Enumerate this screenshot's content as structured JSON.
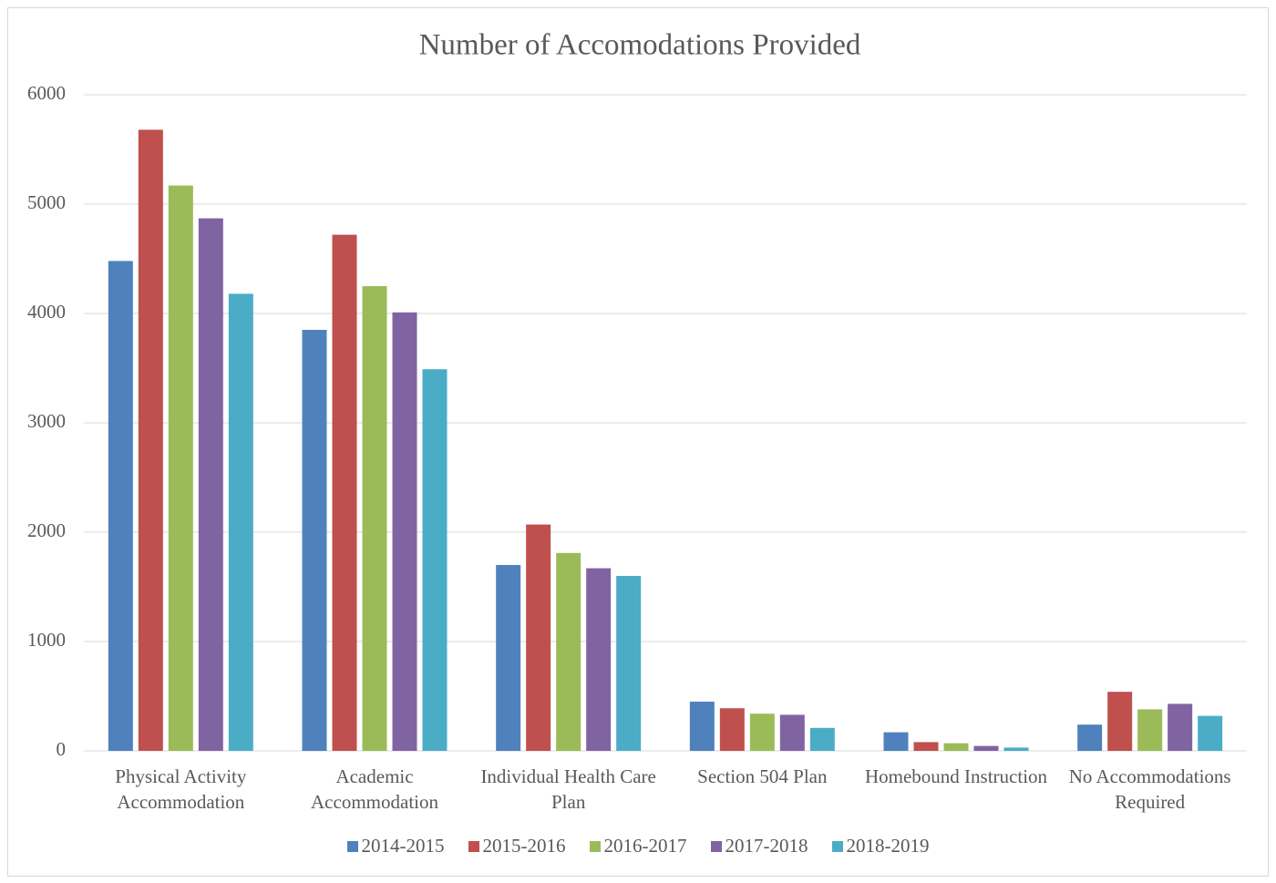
{
  "chart_data": {
    "type": "bar",
    "title": "Number of Accomodations Provided",
    "categories": [
      "Physical Activity Accommodation",
      "Academic Accommodation",
      "Individual Health Care Plan",
      "Section 504 Plan",
      "Homebound Instruction",
      "No Accommodations Required"
    ],
    "series": [
      {
        "name": "2014-2015",
        "color": "#4f81bd",
        "values": [
          4480,
          3850,
          1700,
          450,
          170,
          240
        ]
      },
      {
        "name": "2015-2016",
        "color": "#c0504d",
        "values": [
          5680,
          4720,
          2070,
          390,
          80,
          540
        ]
      },
      {
        "name": "2016-2017",
        "color": "#9bbb59",
        "values": [
          5170,
          4250,
          1810,
          340,
          70,
          380
        ]
      },
      {
        "name": "2017-2018",
        "color": "#8064a2",
        "values": [
          4870,
          4010,
          1670,
          330,
          45,
          430
        ]
      },
      {
        "name": "2018-2019",
        "color": "#4bacc6",
        "values": [
          4180,
          3490,
          1600,
          210,
          30,
          320
        ]
      }
    ],
    "ylim": [
      0,
      6000
    ],
    "yticks": [
      0,
      1000,
      2000,
      3000,
      4000,
      5000,
      6000
    ],
    "grid": true,
    "legend": "bottom"
  }
}
